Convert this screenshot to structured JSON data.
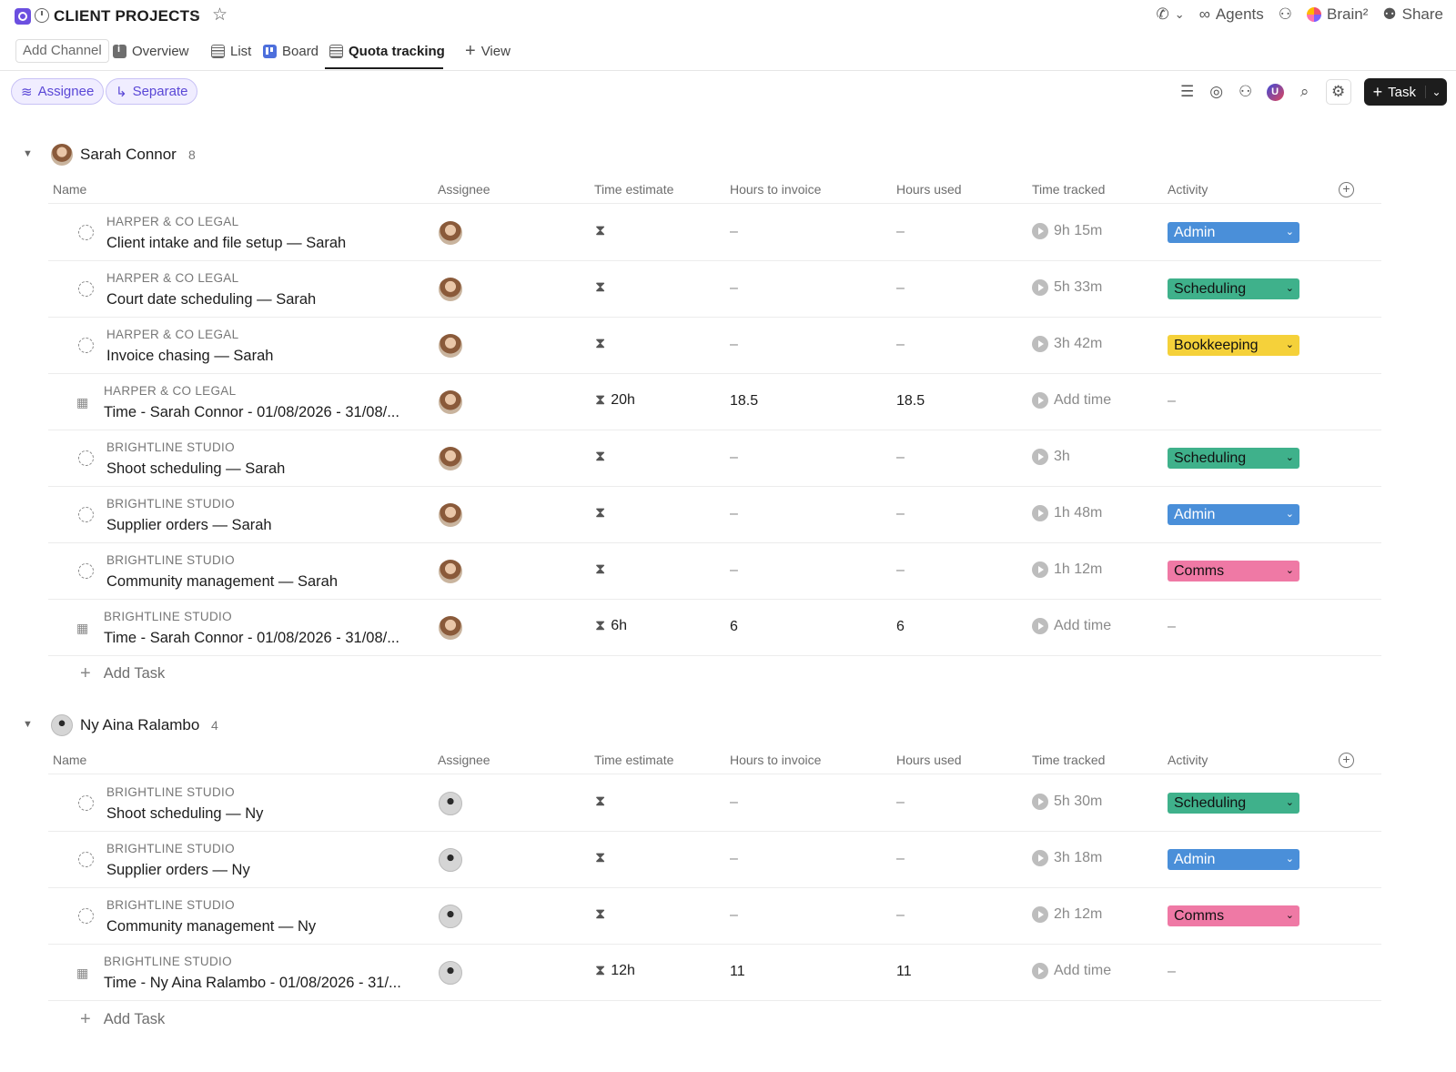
{
  "header": {
    "title": "CLIENT PROJECTS",
    "agents_label": "Agents",
    "brain_label": "Brain²",
    "share_label": "Share"
  },
  "tabs": {
    "add_channel": "Add Channel",
    "items": [
      {
        "label": "Overview"
      },
      {
        "label": "List"
      },
      {
        "label": "Board"
      },
      {
        "label": "Quota tracking"
      }
    ],
    "add_view": "View",
    "active": "Quota tracking"
  },
  "filters": {
    "group_by": "Assignee",
    "separate": "Separate",
    "task_button": "Task"
  },
  "columns": {
    "name": "Name",
    "assignee": "Assignee",
    "time_estimate": "Time estimate",
    "hours_to_invoice": "Hours to invoice",
    "hours_used": "Hours used",
    "time_tracked": "Time tracked",
    "activity": "Activity"
  },
  "groups": [
    {
      "name": "Sarah Connor",
      "count": "8",
      "add_task": "Add Task",
      "rows": [
        {
          "client": "HARPER & CO LEGAL",
          "task": "Client intake and file setup — Sarah",
          "estimate": "",
          "h2i": "–",
          "used": "–",
          "tracked": "9h 15m",
          "activity": "Admin"
        },
        {
          "client": "HARPER & CO LEGAL",
          "task": "Court date scheduling — Sarah",
          "estimate": "",
          "h2i": "–",
          "used": "–",
          "tracked": "5h 33m",
          "activity": "Scheduling"
        },
        {
          "client": "HARPER & CO LEGAL",
          "task": "Invoice chasing — Sarah",
          "estimate": "",
          "h2i": "–",
          "used": "–",
          "tracked": "3h 42m",
          "activity": "Bookkeeping"
        },
        {
          "client": "HARPER & CO LEGAL",
          "task": "Time - Sarah Connor - 01/08/2026 - 31/08/...",
          "estimate": "20h",
          "h2i": "18.5",
          "used": "18.5",
          "tracked": "Add time",
          "activity": "–"
        },
        {
          "client": "BRIGHTLINE STUDIO",
          "task": "Shoot scheduling — Sarah",
          "estimate": "",
          "h2i": "–",
          "used": "–",
          "tracked": "3h",
          "activity": "Scheduling"
        },
        {
          "client": "BRIGHTLINE STUDIO",
          "task": "Supplier orders — Sarah",
          "estimate": "",
          "h2i": "–",
          "used": "–",
          "tracked": "1h 48m",
          "activity": "Admin"
        },
        {
          "client": "BRIGHTLINE STUDIO",
          "task": "Community management — Sarah",
          "estimate": "",
          "h2i": "–",
          "used": "–",
          "tracked": "1h 12m",
          "activity": "Comms"
        },
        {
          "client": "BRIGHTLINE STUDIO",
          "task": "Time - Sarah Connor - 01/08/2026 - 31/08/...",
          "estimate": "6h",
          "h2i": "6",
          "used": "6",
          "tracked": "Add time",
          "activity": "–"
        }
      ]
    },
    {
      "name": "Ny Aina Ralambo",
      "count": "4",
      "add_task": "Add Task",
      "rows": [
        {
          "client": "BRIGHTLINE STUDIO",
          "task": "Shoot scheduling — Ny",
          "estimate": "",
          "h2i": "–",
          "used": "–",
          "tracked": "5h 30m",
          "activity": "Scheduling"
        },
        {
          "client": "BRIGHTLINE STUDIO",
          "task": "Supplier orders — Ny",
          "estimate": "",
          "h2i": "–",
          "used": "–",
          "tracked": "3h 18m",
          "activity": "Admin"
        },
        {
          "client": "BRIGHTLINE STUDIO",
          "task": "Community management — Ny",
          "estimate": "",
          "h2i": "–",
          "used": "–",
          "tracked": "2h 12m",
          "activity": "Comms"
        },
        {
          "client": "BRIGHTLINE STUDIO",
          "task": "Time - Ny Aina Ralambo - 01/08/2026 - 31/...",
          "estimate": "12h",
          "h2i": "11",
          "used": "11",
          "tracked": "Add time",
          "activity": "–"
        }
      ]
    }
  ],
  "colors": {
    "accent": "#6b4fe0",
    "admin": "#4a8fd9",
    "scheduling": "#3fb18b",
    "bookkeeping": "#f5d13a",
    "comms": "#ef79a5"
  }
}
